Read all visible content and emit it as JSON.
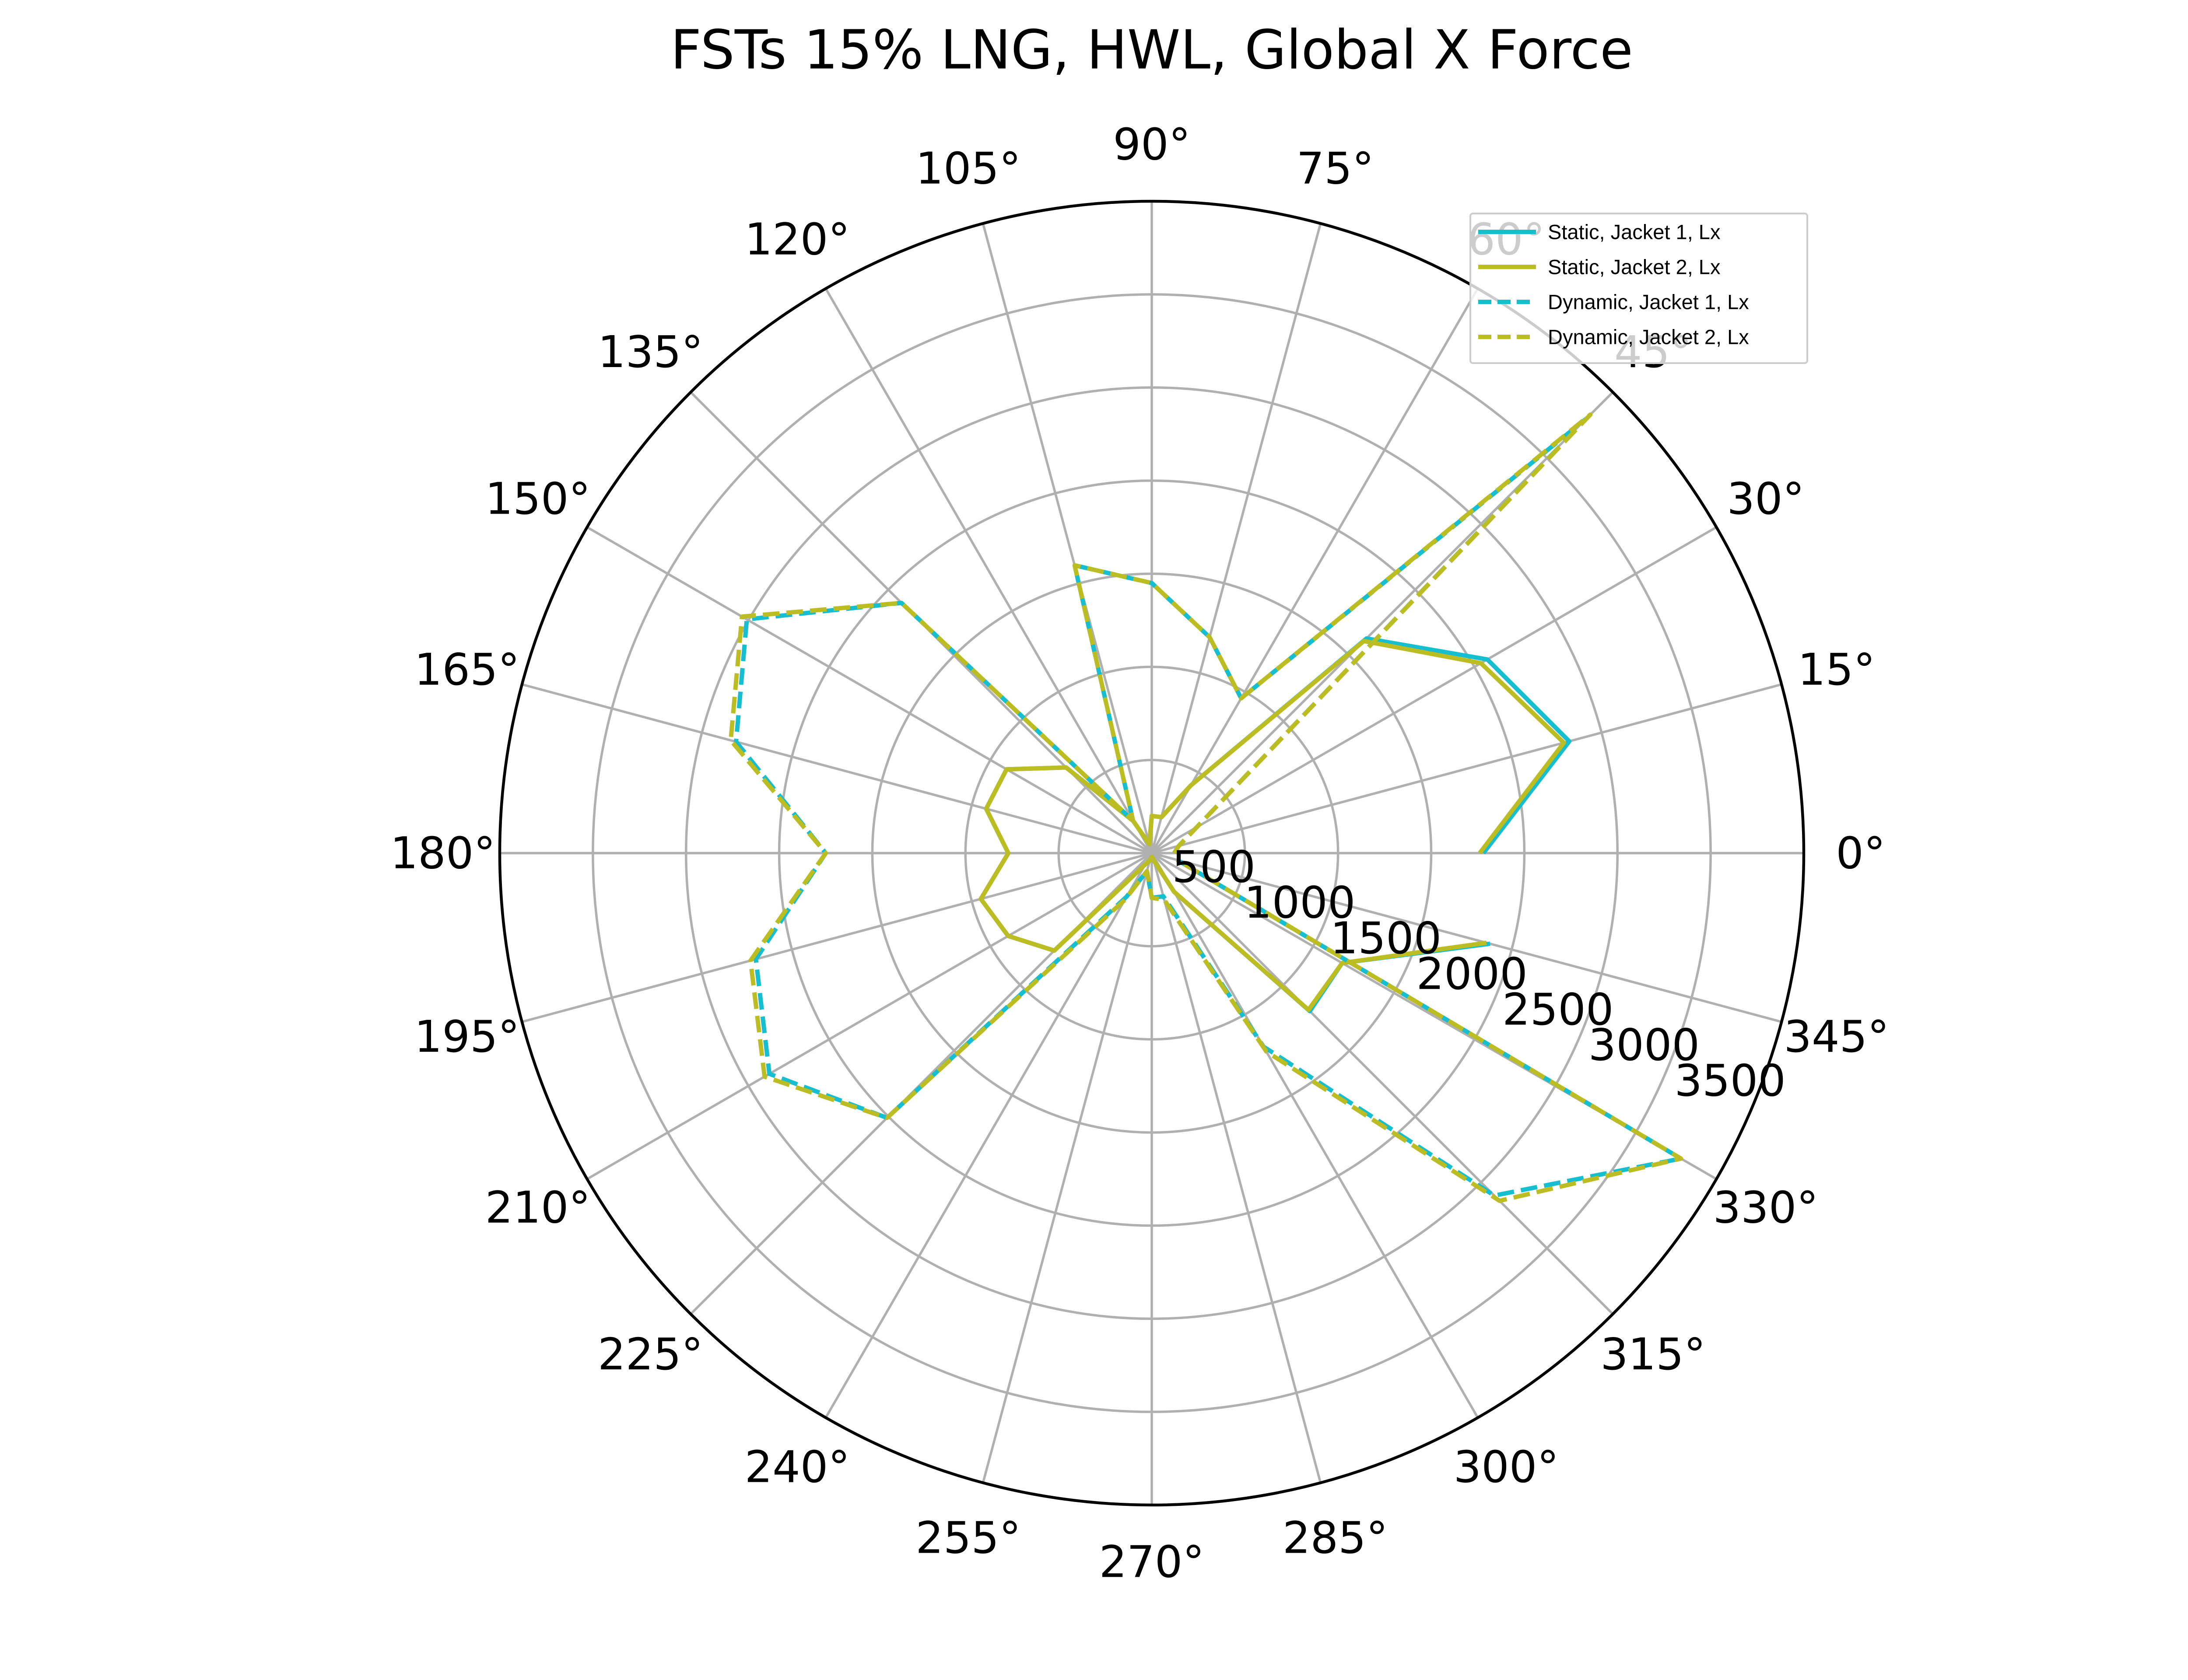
{
  "chart_data": {
    "type": "polar-line",
    "title": "FSTs 15% LNG, HWL, Global X Force",
    "theta_ticks": [
      "0°",
      "15°",
      "30°",
      "45°",
      "60°",
      "75°",
      "90°",
      "105°",
      "120°",
      "135°",
      "150°",
      "165°",
      "180°",
      "195°",
      "210°",
      "225°",
      "240°",
      "255°",
      "270°",
      "285°",
      "300°",
      "315°",
      "330°",
      "345°"
    ],
    "r_ticks": [
      "500",
      "1000",
      "1500",
      "2000",
      "2500",
      "3000",
      "3500"
    ],
    "r_lim": [
      0,
      3500
    ],
    "grid": true,
    "legend_position": "top-right",
    "colors": {
      "cyan": "#17becf",
      "olive": "#bcbd22",
      "grid": "#b0b0b0"
    },
    "theta": [
      0,
      15,
      30,
      45,
      60,
      75,
      90,
      105,
      120,
      135,
      150,
      165,
      180,
      195,
      210,
      225,
      240,
      255,
      270,
      285,
      300,
      315,
      330,
      345
    ],
    "series": [
      {
        "name": "Static, Jacket 1, Lx",
        "style": "solid",
        "color": "#17becf",
        "values": [
          1780,
          2320,
          2080,
          1630,
          420,
          200,
          200,
          50,
          200,
          650,
          900,
          920,
          770,
          950,
          890,
          740,
          70,
          40,
          20,
          40,
          240,
          1200,
          1180,
          1880
        ]
      },
      {
        "name": "Static, Jacket 2, Lx",
        "style": "solid",
        "color": "#bcbd22",
        "values": [
          1760,
          2290,
          2040,
          1610,
          420,
          200,
          200,
          50,
          200,
          650,
          900,
          920,
          770,
          950,
          890,
          740,
          70,
          40,
          20,
          40,
          240,
          1190,
          1180,
          1860
        ]
      },
      {
        "name": "Dynamic, Jacket 1, Lx",
        "style": "dashed",
        "color": "#17becf",
        "values": [
          120,
          150,
          280,
          3300,
          960,
          1200,
          1450,
          1600,
          200,
          1900,
          2510,
          2310,
          1750,
          2200,
          2370,
          2010,
          270,
          100,
          240,
          240,
          1200,
          2600,
          3280,
          140
        ]
      },
      {
        "name": "Dynamic, Jacket 2, Lx",
        "style": "dashed",
        "color": "#bcbd22",
        "values": [
          120,
          150,
          280,
          3330,
          960,
          1200,
          1450,
          1600,
          200,
          1900,
          2540,
          2340,
          1750,
          2230,
          2400,
          2010,
          290,
          100,
          240,
          260,
          1230,
          2640,
          3280,
          140
        ]
      }
    ]
  }
}
